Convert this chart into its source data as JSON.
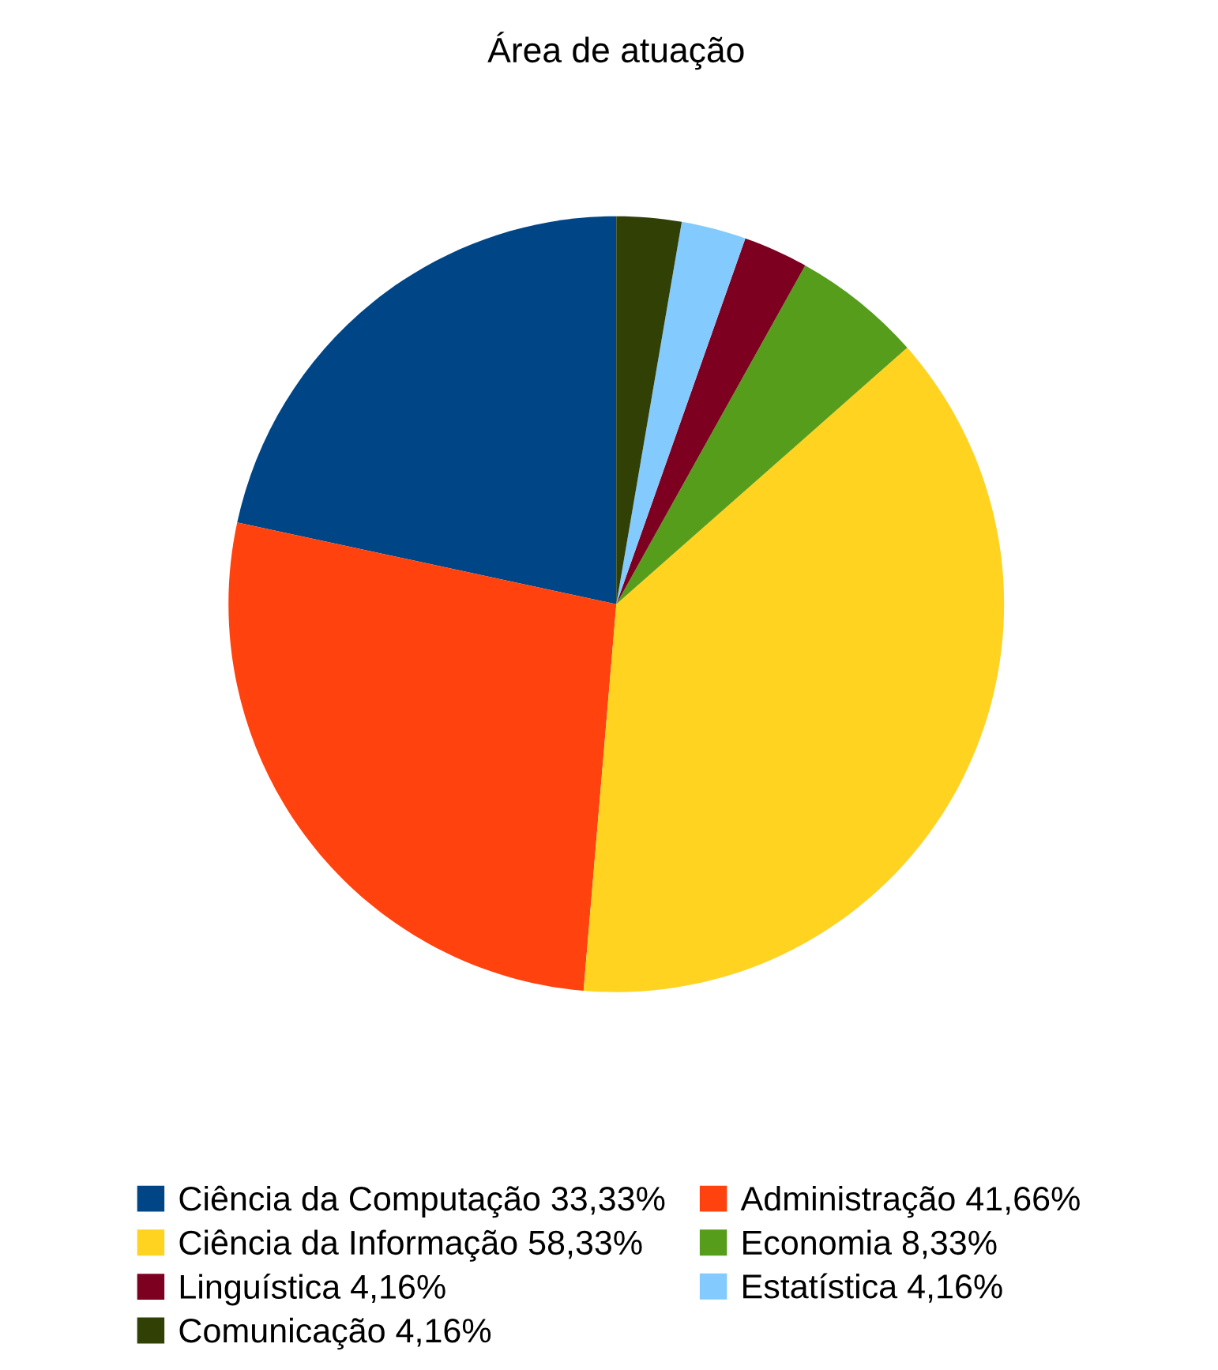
{
  "chart_data": {
    "type": "pie",
    "title": "Área de atuação",
    "categories": [
      "Ciência da Computação 33,33%",
      "Administração 41,66%",
      "Ciência da Informação 58,33%",
      "Economia 8,33%",
      "Linguística 4,16%",
      "Estatística 4,16%",
      "Comunicação 4,16%"
    ],
    "values": [
      33.33,
      41.66,
      58.33,
      8.33,
      4.16,
      4.16,
      4.16
    ],
    "colors": [
      "#004586",
      "#ff420e",
      "#ffd320",
      "#579d1c",
      "#7e0021",
      "#83caff",
      "#314004"
    ],
    "legend": "bottom"
  }
}
